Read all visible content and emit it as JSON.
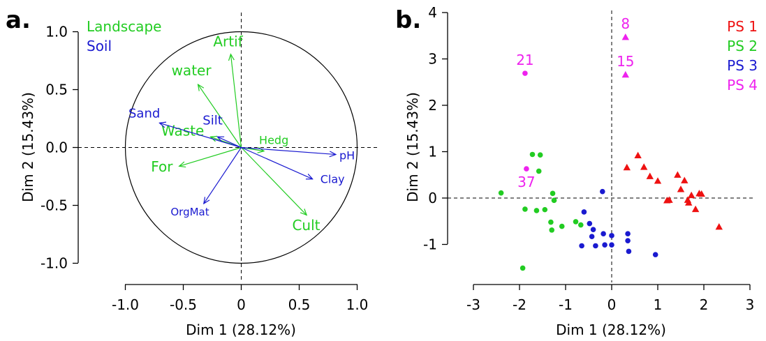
{
  "chart_data": [
    {
      "type": "vector-biplot",
      "panel_label": "a.",
      "xlabel": "Dim 1 (28.12%)",
      "ylabel": "Dim 2 (15.43%)",
      "xlim": [
        -1.0,
        1.0
      ],
      "ylim": [
        -1.0,
        1.0
      ],
      "x_ticks": [
        "-1.0",
        "-0.5",
        "0",
        "0.5",
        "1.0"
      ],
      "y_ticks": [
        "-1.0",
        "-0.5",
        "0.0",
        "0.5",
        "1.0"
      ],
      "unit_circle": true,
      "reference_lines": [
        "x=0",
        "y=0"
      ],
      "legend": [
        {
          "name": "Landscape",
          "color": "#22cc22"
        },
        {
          "name": "Soil",
          "color": "#1a1ad0"
        }
      ],
      "vectors": [
        {
          "label": "Artif",
          "group": "Landscape",
          "x": -0.09,
          "y": 0.8
        },
        {
          "label": "water",
          "group": "Landscape",
          "x": -0.37,
          "y": 0.54
        },
        {
          "label": "Waste",
          "group": "Landscape",
          "x": -0.26,
          "y": 0.09
        },
        {
          "label": "For",
          "group": "Landscape",
          "x": -0.53,
          "y": -0.16
        },
        {
          "label": "Hedg",
          "group": "Landscape",
          "x": 0.19,
          "y": -0.03
        },
        {
          "label": "Cult",
          "group": "Landscape",
          "x": 0.56,
          "y": -0.58
        },
        {
          "label": "Sand",
          "group": "Soil",
          "x": -0.7,
          "y": 0.21
        },
        {
          "label": "Silt",
          "group": "Soil",
          "x": -0.2,
          "y": 0.09
        },
        {
          "label": "pH",
          "group": "Soil",
          "x": 0.81,
          "y": -0.06
        },
        {
          "label": "Clay",
          "group": "Soil",
          "x": 0.61,
          "y": -0.27
        },
        {
          "label": "OrgMat",
          "group": "Soil",
          "x": -0.32,
          "y": -0.48
        }
      ]
    },
    {
      "type": "scatter",
      "panel_label": "b.",
      "xlabel": "Dim 1 (28.12%)",
      "ylabel": "Dim 2 (15.43%)",
      "xlim": [
        -3,
        3
      ],
      "ylim": [
        -1.5,
        4
      ],
      "x_ticks": [
        "-3",
        "-2",
        "-1",
        "0",
        "1",
        "2",
        "3"
      ],
      "y_ticks": [
        "-1",
        "0",
        "1",
        "2",
        "3",
        "4"
      ],
      "reference_lines": [
        "x=0",
        "y=0"
      ],
      "series": [
        {
          "name": "PS 1",
          "color": "#ee1111",
          "marker": "triangle",
          "points": [
            [
              0.33,
              0.66
            ],
            [
              0.57,
              0.92
            ],
            [
              0.7,
              0.67
            ],
            [
              0.83,
              0.47
            ],
            [
              1.0,
              0.37
            ],
            [
              1.2,
              -0.05
            ],
            [
              1.25,
              -0.04
            ],
            [
              1.43,
              0.5
            ],
            [
              1.5,
              0.19
            ],
            [
              1.65,
              -0.04
            ],
            [
              1.58,
              0.38
            ],
            [
              1.67,
              -0.1
            ],
            [
              1.73,
              0.06
            ],
            [
              1.82,
              -0.24
            ],
            [
              1.9,
              0.1
            ],
            [
              1.95,
              0.09
            ],
            [
              2.33,
              -0.62
            ]
          ]
        },
        {
          "name": "PS 2",
          "color": "#22cc22",
          "marker": "circle",
          "points": [
            [
              -1.93,
              -1.51
            ],
            [
              -2.4,
              0.11
            ],
            [
              -1.88,
              -0.24
            ],
            [
              -1.72,
              0.94
            ],
            [
              -1.58,
              0.58
            ],
            [
              -1.55,
              0.93
            ],
            [
              -1.63,
              -0.27
            ],
            [
              -1.45,
              -0.25
            ],
            [
              -1.32,
              -0.52
            ],
            [
              -1.3,
              -0.69
            ],
            [
              -1.28,
              0.1
            ],
            [
              -1.25,
              -0.05
            ],
            [
              -1.08,
              -0.61
            ],
            [
              -0.78,
              -0.51
            ],
            [
              -0.67,
              -0.58
            ]
          ]
        },
        {
          "name": "PS 3",
          "color": "#1a1ad0",
          "marker": "circle",
          "points": [
            [
              -0.6,
              -0.3
            ],
            [
              -0.48,
              -0.55
            ],
            [
              -0.4,
              -0.68
            ],
            [
              -0.65,
              -1.03
            ],
            [
              -0.43,
              -0.83
            ],
            [
              -0.35,
              -1.03
            ],
            [
              -0.2,
              0.14
            ],
            [
              -0.18,
              -0.77
            ],
            [
              -0.15,
              -1.01
            ],
            [
              0.0,
              -0.81
            ],
            [
              0.0,
              -1.01
            ],
            [
              0.35,
              -0.77
            ],
            [
              0.35,
              -0.92
            ],
            [
              0.37,
              -1.15
            ],
            [
              0.95,
              -1.22
            ]
          ]
        },
        {
          "name": "PS 4",
          "color": "#ee22ee",
          "marker": "mixed",
          "points": [
            {
              "label": "21",
              "x": -1.88,
              "y": 2.69,
              "marker": "circle"
            },
            {
              "label": "8",
              "x": 0.3,
              "y": 3.47,
              "marker": "triangle"
            },
            {
              "label": "15",
              "x": 0.3,
              "y": 2.66,
              "marker": "triangle"
            },
            {
              "label": "37",
              "x": -1.85,
              "y": 0.63,
              "marker": "circle"
            }
          ]
        }
      ],
      "legend": {
        "placement": "top-right",
        "entries": [
          "PS 1",
          "PS 2",
          "PS 3",
          "PS 4"
        ]
      }
    }
  ]
}
